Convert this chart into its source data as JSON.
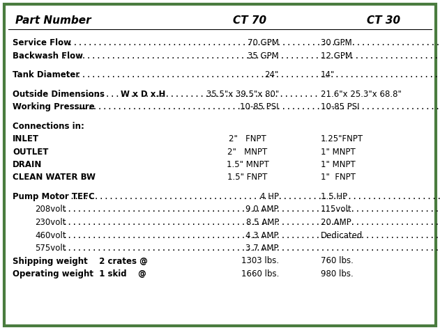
{
  "border_color": "#4a7c3f",
  "bg_color": "#ffffff",
  "header": {
    "col1": "Part Number",
    "col2": "CT 70",
    "col3": "CT 30"
  },
  "rows": [
    {
      "type": "gap"
    },
    {
      "type": "dotrow",
      "label": "Service Flow",
      "ct70": "70 GPM",
      "ct30": "30 GPM",
      "indent": 0,
      "bold": true
    },
    {
      "type": "dotrow",
      "label": "Backwash Flow",
      "ct70": "35 GPM",
      "ct30": "12 GPM",
      "indent": 0,
      "bold": true
    },
    {
      "type": "gap"
    },
    {
      "type": "dotrow",
      "label": "Tank Diameter",
      "ct70": "24\"",
      "ct30": "14\"",
      "indent": 0,
      "bold": true
    },
    {
      "type": "gap"
    },
    {
      "type": "special_outside_dim",
      "ct70": "35.5\"x 39.5\"x 80\"",
      "ct30": "21.6\"x 25.3\"x 68.8\""
    },
    {
      "type": "dotrow",
      "label": "Working Pressure",
      "ct70": "10-85 PSI",
      "ct30": "10-85 PSI",
      "indent": 0,
      "bold": true
    },
    {
      "type": "gap"
    },
    {
      "type": "plainrow",
      "label": "Connections in:",
      "ct70": "",
      "ct30": "",
      "indent": 0,
      "bold": true
    },
    {
      "type": "plainrow",
      "label": "INLET",
      "ct70": "2\"   FNPT",
      "ct30": "1.25\"FNPT",
      "indent": 0,
      "bold": true
    },
    {
      "type": "plainrow",
      "label": "OUTLET",
      "ct70": "2\"   MNPT",
      "ct30": "1\" MNPT",
      "indent": 0,
      "bold": true
    },
    {
      "type": "plainrow",
      "label": "DRAIN",
      "ct70": "1.5\" MNPT",
      "ct30": "1\" MNPT",
      "indent": 0,
      "bold": true
    },
    {
      "type": "plainrow",
      "label": "CLEAN WATER BW",
      "ct70": "1.5\" FNPT",
      "ct30": "1\"  FNPT",
      "indent": 0,
      "bold": true
    },
    {
      "type": "gap"
    },
    {
      "type": "dotrow",
      "label": "Pump Motor TEFC",
      "ct70": "4 HP",
      "ct30": "1.5 HP",
      "indent": 0,
      "bold": true
    },
    {
      "type": "dotrow",
      "label": "208volt",
      "ct70": "9.0 AMP",
      "ct30": "115volt",
      "indent": 1,
      "bold": false
    },
    {
      "type": "dotrow",
      "label": "230volt",
      "ct70": "8.5 AMP",
      "ct30": "20 AMP",
      "indent": 1,
      "bold": false
    },
    {
      "type": "dotrow",
      "label": "460volt",
      "ct70": "4.3 AMP",
      "ct30": "Dedicated",
      "indent": 1,
      "bold": false
    },
    {
      "type": "dotrow",
      "label": "575volt",
      "ct70": "3.7 AMP",
      "ct30": "",
      "indent": 1,
      "bold": false
    },
    {
      "type": "weightrow",
      "label": "Shipping weight    2 crates @",
      "ct70": "1303 lbs.",
      "ct30": "760 lbs."
    },
    {
      "type": "weightrow",
      "label": "Operating weight  1 skid    @",
      "ct70": "1660 lbs.",
      "ct30": "980 lbs."
    }
  ],
  "font_size": 8.5,
  "header_font_size": 11.0
}
